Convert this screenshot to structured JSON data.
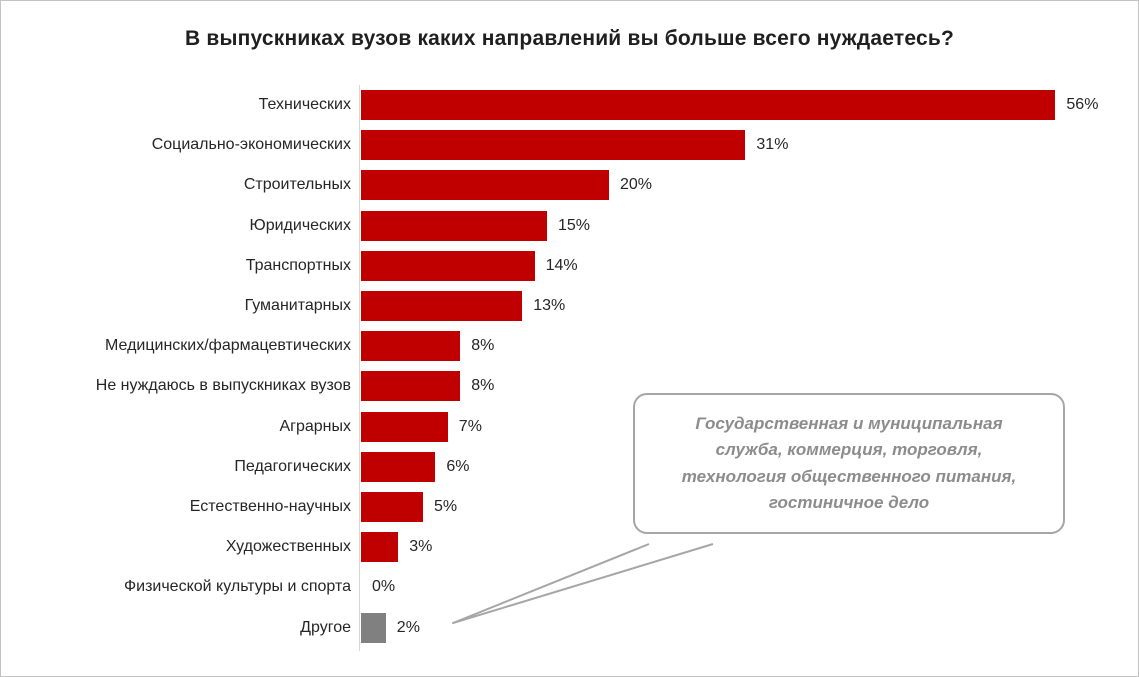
{
  "chart_data": {
    "type": "bar",
    "orientation": "horizontal",
    "title": "В выпускниках вузов каких направлений вы больше всего нуждаетесь?",
    "categories": [
      "Технических",
      "Социально-экономических",
      "Строительных",
      "Юридических",
      "Транспортных",
      "Гуманитарных",
      "Медицинских/фармацевтических",
      "Не нуждаюсь в выпускниках вузов",
      "Аграрных",
      "Педагогических",
      "Естественно-научных",
      "Художественных",
      "Физической культуры и спорта",
      "Другое"
    ],
    "values": [
      56,
      31,
      20,
      15,
      14,
      13,
      8,
      8,
      7,
      6,
      5,
      3,
      0,
      2
    ],
    "value_labels": [
      "56%",
      "31%",
      "20%",
      "15%",
      "14%",
      "13%",
      "8%",
      "8%",
      "7%",
      "6%",
      "5%",
      "3%",
      "0%",
      "2%"
    ],
    "colors": [
      "#c00000",
      "#c00000",
      "#c00000",
      "#c00000",
      "#c00000",
      "#c00000",
      "#c00000",
      "#c00000",
      "#c00000",
      "#c00000",
      "#c00000",
      "#c00000",
      "#c00000",
      "#808080"
    ],
    "xlim": [
      0,
      60
    ],
    "grid": false,
    "legend": "none",
    "xlabel": "",
    "ylabel": ""
  },
  "style": {
    "bar_color": "#c00000",
    "other_bar_color": "#808080",
    "axis_color": "#d6d6d6",
    "title_color": "#1f1f1f",
    "label_color": "#262626"
  },
  "callout": {
    "text": "Государственная и муниципальная служба, коммерция, торговля, технология общественного питания, гостиничное дело",
    "border_color": "#a6a6a6",
    "text_color": "#8c8c8c",
    "points_to": "Другое"
  }
}
